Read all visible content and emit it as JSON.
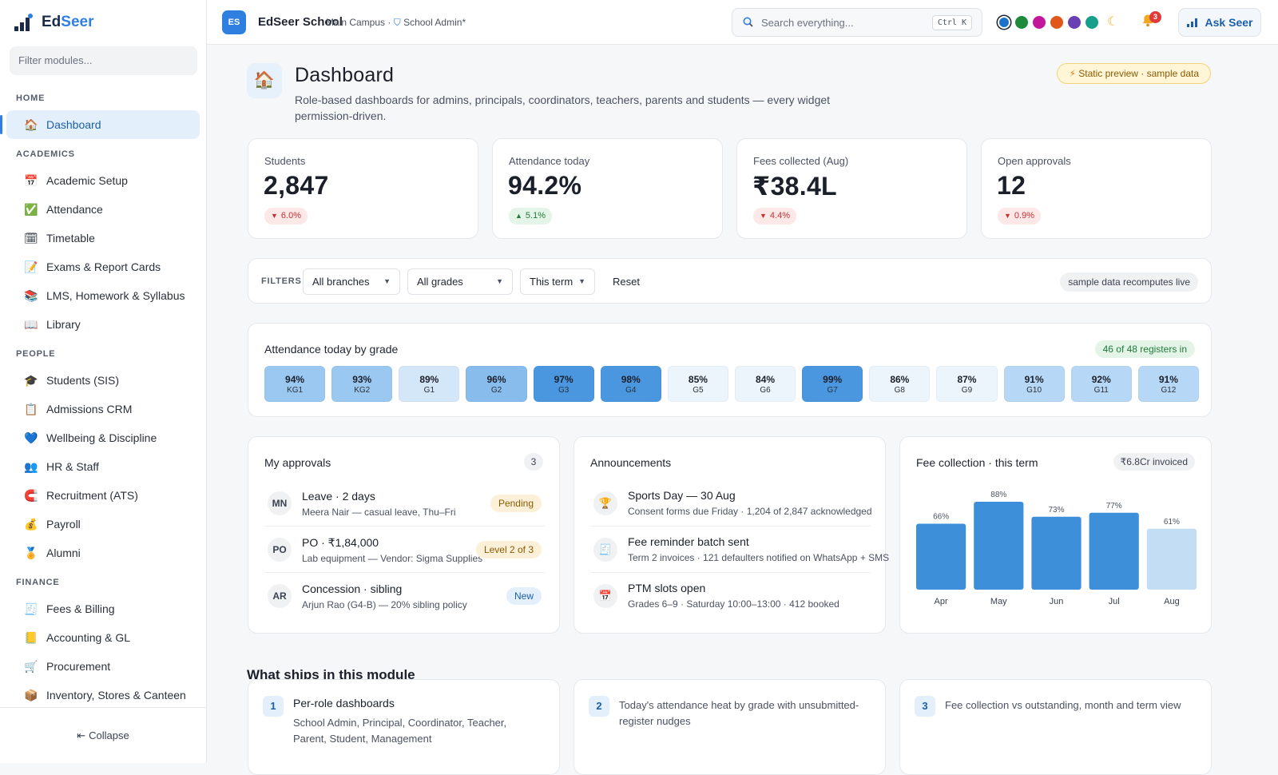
{
  "app": {
    "name_prefix": "Ed",
    "name_accent": "Seer",
    "filter_placeholder": "Filter modules...",
    "collapse_label": "Collapse"
  },
  "sidebar": {
    "sections": [
      {
        "title": "HOME",
        "items": [
          {
            "label": "Dashboard",
            "icon": "🏠",
            "active": true
          }
        ]
      },
      {
        "title": "ACADEMICS",
        "items": [
          {
            "label": "Academic Setup",
            "icon": "📅"
          },
          {
            "label": "Attendance",
            "icon": "✅"
          },
          {
            "label": "Timetable",
            "icon": "🗓"
          },
          {
            "label": "Exams & Report Cards",
            "icon": "📝"
          },
          {
            "label": "LMS, Homework & Syllabus",
            "icon": "📚"
          },
          {
            "label": "Library",
            "icon": "📖"
          }
        ]
      },
      {
        "title": "PEOPLE",
        "items": [
          {
            "label": "Students (SIS)",
            "icon": "🎓"
          },
          {
            "label": "Admissions CRM",
            "icon": "📋"
          },
          {
            "label": "Wellbeing & Discipline",
            "icon": "💙"
          },
          {
            "label": "HR & Staff",
            "icon": "👥"
          },
          {
            "label": "Recruitment (ATS)",
            "icon": "🧲"
          },
          {
            "label": "Payroll",
            "icon": "💰"
          },
          {
            "label": "Alumni",
            "icon": "🏅"
          }
        ]
      },
      {
        "title": "FINANCE",
        "items": [
          {
            "label": "Fees & Billing",
            "icon": "🧾"
          },
          {
            "label": "Accounting & GL",
            "icon": "📒"
          },
          {
            "label": "Procurement",
            "icon": "🛒"
          },
          {
            "label": "Inventory, Stores & Canteen",
            "icon": "📦"
          }
        ]
      }
    ]
  },
  "topbar": {
    "badge": "ES",
    "school": "EdSeer School",
    "campus": "Main Campus · ",
    "role": "School Admin",
    "role_suffix": "*",
    "search_placeholder": "Search everything...",
    "shortcut": "Ctrl K",
    "notif_count": "3",
    "ask_label": "Ask Seer",
    "theme_colors": [
      "#1a73c9",
      "#1e8a3c",
      "#c2179a",
      "#e0561b",
      "#6a3fb4",
      "#16a08c"
    ]
  },
  "header": {
    "title": "Dashboard",
    "subtitle": "Role-based dashboards for admins, principals, coordinators, teachers, parents and students — every widget permission-driven.",
    "preview": "Static preview · sample data"
  },
  "kpis": [
    {
      "label": "Students",
      "value": "2,847",
      "delta": "6.0%",
      "dir": "down"
    },
    {
      "label": "Attendance today",
      "value": "94.2%",
      "delta": "5.1%",
      "dir": "up"
    },
    {
      "label": "Fees collected (Aug)",
      "value": "₹38.4L",
      "delta": "4.4%",
      "dir": "down"
    },
    {
      "label": "Open approvals",
      "value": "12",
      "delta": "0.9%",
      "dir": "down"
    }
  ],
  "filters": {
    "label": "FILTERS",
    "branch": "All branches",
    "grade": "All grades",
    "term": "This term",
    "reset": "Reset",
    "note": "sample data recomputes live"
  },
  "heatmap": {
    "title": "Attendance today by grade",
    "registers": "46 of 48 registers in",
    "cells": [
      {
        "pct": "94%",
        "grade": "KG1",
        "value": 94
      },
      {
        "pct": "93%",
        "grade": "KG2",
        "value": 93
      },
      {
        "pct": "89%",
        "grade": "G1",
        "value": 89
      },
      {
        "pct": "96%",
        "grade": "G2",
        "value": 96
      },
      {
        "pct": "97%",
        "grade": "G3",
        "value": 97
      },
      {
        "pct": "98%",
        "grade": "G4",
        "value": 98
      },
      {
        "pct": "85%",
        "grade": "G5",
        "value": 85
      },
      {
        "pct": "84%",
        "grade": "G6",
        "value": 84
      },
      {
        "pct": "99%",
        "grade": "G7",
        "value": 99
      },
      {
        "pct": "86%",
        "grade": "G8",
        "value": 86
      },
      {
        "pct": "87%",
        "grade": "G9",
        "value": 87
      },
      {
        "pct": "91%",
        "grade": "G10",
        "value": 91
      },
      {
        "pct": "92%",
        "grade": "G11",
        "value": 92
      },
      {
        "pct": "91%",
        "grade": "G12",
        "value": 91
      }
    ]
  },
  "approvals": {
    "title": "My approvals",
    "count": "3",
    "items": [
      {
        "initials": "MN",
        "title": "Leave · 2 days",
        "sub": "Meera Nair — casual leave, Thu–Fri",
        "status": "Pending",
        "kind": "pending"
      },
      {
        "initials": "PO",
        "title": "PO · ₹1,84,000",
        "sub": "Lab equipment — Vendor: Sigma Supplies",
        "status": "Level 2 of 3",
        "kind": "level"
      },
      {
        "initials": "AR",
        "title": "Concession · sibling",
        "sub": "Arjun Rao (G4-B) — 20% sibling policy",
        "status": "New",
        "kind": "new"
      }
    ]
  },
  "announcements": {
    "title": "Announcements",
    "items": [
      {
        "icon": "🏆",
        "title": "Sports Day — 30 Aug",
        "sub": "Consent forms due Friday · 1,204 of 2,847 acknowledged"
      },
      {
        "icon": "🧾",
        "title": "Fee reminder batch sent",
        "sub": "Term 2 invoices · 121 defaulters notified on WhatsApp + SMS"
      },
      {
        "icon": "📅",
        "title": "PTM slots open",
        "sub": "Grades 6–9 · Saturday 10:00–13:00 · 412 booked"
      }
    ]
  },
  "fee_collection": {
    "title": "Fee collection · this term",
    "invoiced": "₹6.8Cr invoiced"
  },
  "chart_data": {
    "type": "bar",
    "categories": [
      "Apr",
      "May",
      "Jun",
      "Jul",
      "Aug"
    ],
    "values": [
      66,
      88,
      73,
      77,
      61
    ],
    "value_labels": [
      "66%",
      "88%",
      "73%",
      "77%",
      "61%"
    ],
    "colors": [
      "#3d8fd9",
      "#3d8fd9",
      "#3d8fd9",
      "#3d8fd9",
      "#c3ddf4"
    ],
    "ylim": [
      0,
      100
    ],
    "grid": false
  },
  "ships": {
    "title": "What ships in this module",
    "items": [
      {
        "num": "1",
        "title": "Per-role dashboards",
        "desc": "School Admin, Principal, Coordinator, Teacher, Parent, Student, Management"
      },
      {
        "num": "2",
        "title": "",
        "desc": "Today's attendance heat by grade with unsubmitted-register nudges"
      },
      {
        "num": "3",
        "title": "",
        "desc": "Fee collection vs outstanding, month and term view"
      }
    ]
  }
}
